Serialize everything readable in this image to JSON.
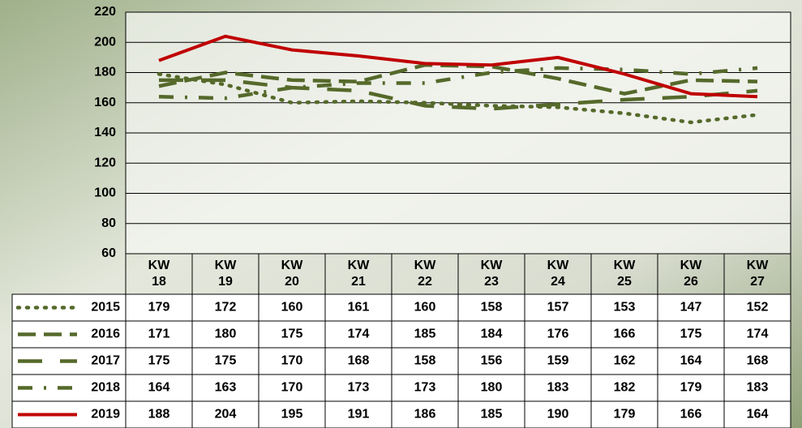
{
  "chart_data": {
    "type": "line",
    "categories": [
      "KW 18",
      "KW 19",
      "KW 20",
      "KW 21",
      "KW 22",
      "KW 23",
      "KW 24",
      "KW 25",
      "KW 26",
      "KW 27"
    ],
    "series": [
      {
        "name": "2015",
        "color": "#55692a",
        "dash": "dotted",
        "values": [
          179,
          172,
          160,
          161,
          160,
          158,
          157,
          153,
          147,
          152
        ]
      },
      {
        "name": "2016",
        "color": "#55692a",
        "dash": "dashed",
        "values": [
          171,
          180,
          175,
          174,
          185,
          184,
          176,
          166,
          175,
          174
        ]
      },
      {
        "name": "2017",
        "color": "#55692a",
        "dash": "longdash",
        "values": [
          175,
          175,
          170,
          168,
          158,
          156,
          159,
          162,
          164,
          168
        ]
      },
      {
        "name": "2018",
        "color": "#55692a",
        "dash": "dashdot",
        "values": [
          164,
          163,
          170,
          173,
          173,
          180,
          183,
          182,
          179,
          183
        ]
      },
      {
        "name": "2019",
        "color": "#c00000",
        "dash": "solid",
        "values": [
          188,
          204,
          195,
          191,
          186,
          185,
          190,
          179,
          166,
          164
        ]
      }
    ],
    "ylim": [
      60,
      220
    ],
    "yticks": [
      60,
      80,
      100,
      120,
      140,
      160,
      180,
      200,
      220
    ],
    "grid": true
  }
}
